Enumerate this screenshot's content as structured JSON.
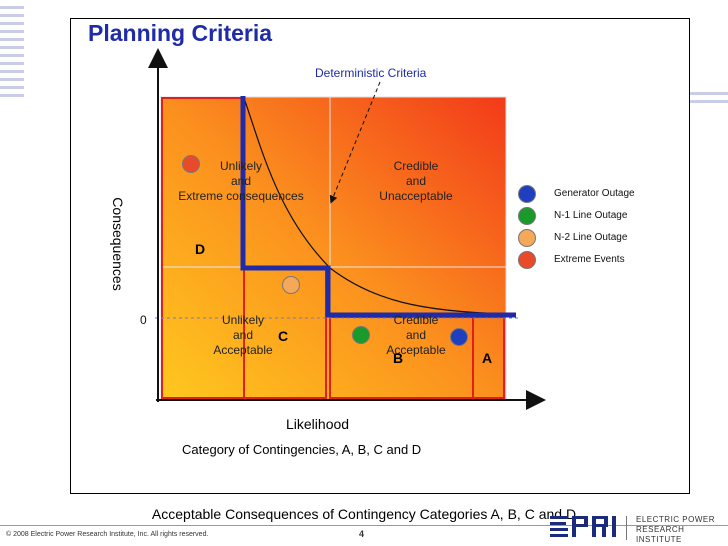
{
  "slide": {
    "title": "Planning Criteria",
    "deterministic_label": "Deterministic Criteria",
    "bottom_caption": "Acceptable Consequences of Contingency Categories A, B, C and D",
    "copyright": "© 2008 Electric Power Research Institute, Inc. All rights reserved.",
    "page_number": "4",
    "logo_line1": "ELECTRIC POWER",
    "logo_line2": "RESEARCH INSTITUTE"
  },
  "axes": {
    "y_label": "Consequences",
    "x_label": "Likelihood",
    "x_sublabel": "Category of Contingencies, A, B, C and D",
    "zero_label": "0"
  },
  "quadrants": {
    "top_left": [
      "Unlikely",
      "and",
      "Extreme consequences"
    ],
    "top_right": [
      "Credible",
      "and",
      "Unacceptable"
    ],
    "bottom_left": [
      "Unlikely",
      "and",
      "Acceptable"
    ],
    "bottom_right": [
      "Credible",
      "and",
      "Acceptable"
    ]
  },
  "categories": {
    "A": "A",
    "B": "B",
    "C": "C",
    "D": "D"
  },
  "legend": [
    {
      "label": "Generator Outage",
      "color": "#1f3fbf"
    },
    {
      "label": "N-1 Line Outage",
      "color": "#1a9a2a"
    },
    {
      "label": "N-2 Line Outage",
      "color": "#f4a858"
    },
    {
      "label": "Extreme Events",
      "color": "#e84a2a"
    }
  ],
  "colors": {
    "title": "#1f2ba8",
    "criteria_line": "#1f2ba8",
    "category_box": "#e02020",
    "gradient_start": "#ffc21a",
    "gradient_end": "#f23a1a"
  }
}
